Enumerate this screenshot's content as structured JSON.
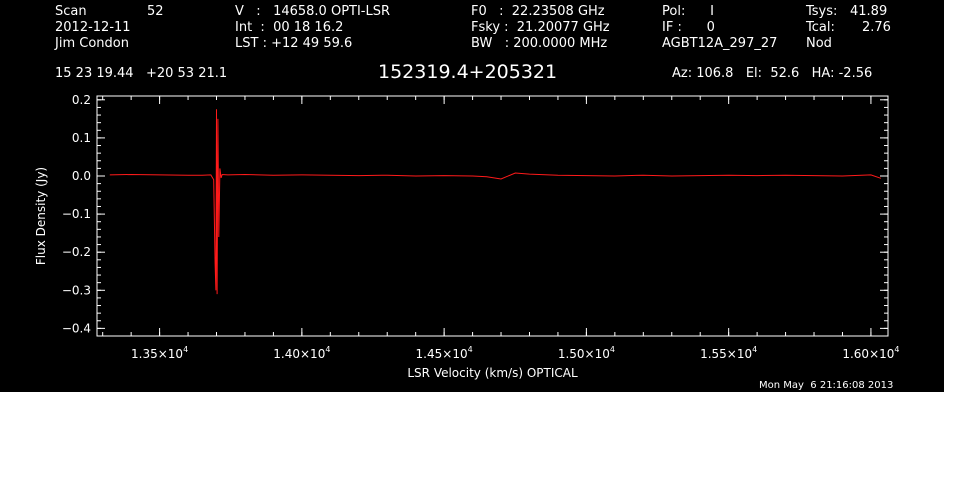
{
  "header": {
    "col1": {
      "scan_label": "Scan",
      "scan_value": "52",
      "date": "2012-12-11",
      "observer": "Jim Condon"
    },
    "col2": {
      "v_line": "V   :   14658.0 OPTI-LSR",
      "int_line": "Int  :  00 18 16.2",
      "lst_line": "LST : +12 49 59.6"
    },
    "col3": {
      "f0_line": "F0   :  22.23508 GHz",
      "fsky_line": "Fsky :  21.20077 GHz",
      "bw_line": "BW   : 200.0000 MHz"
    },
    "col4": {
      "pol_line": "Pol:      I",
      "if_line": "IF :      0",
      "project": "AGBT12A_297_27"
    },
    "col5": {
      "tsys_label": "Tsys:",
      "tsys_value": "41.89",
      "tcal_label": "Tcal:",
      "tcal_value": "2.76",
      "mode": "Nod"
    },
    "coords": "15 23 19.44   +20 53 21.1",
    "source": "152319.4+205321",
    "pointing": "Az: 106.8   El:  52.6   HA: -2.56"
  },
  "footer_timestamp": "Mon May  6 21:16:08 2013",
  "colors": {
    "background": "#000000",
    "trace": "#ff1a1a",
    "axes": "#ffffff"
  },
  "chart_data": {
    "type": "line",
    "title": "152319.4+205321",
    "xlabel": "LSR Velocity (km/s) OPTICAL",
    "ylabel": "Flux Density (Jy)",
    "xlim": [
      13280,
      16060
    ],
    "ylim": [
      -0.42,
      0.21
    ],
    "x_ticks": [
      {
        "value": 13500,
        "mantissa": "1.35",
        "exp": "4"
      },
      {
        "value": 14000,
        "mantissa": "1.40",
        "exp": "4"
      },
      {
        "value": 14500,
        "mantissa": "1.45",
        "exp": "4"
      },
      {
        "value": 15000,
        "mantissa": "1.50",
        "exp": "4"
      },
      {
        "value": 15500,
        "mantissa": "1.55",
        "exp": "4"
      },
      {
        "value": 16000,
        "mantissa": "1.60",
        "exp": "4"
      }
    ],
    "y_ticks": [
      {
        "value": 0.2,
        "label": "0.2"
      },
      {
        "value": 0.1,
        "label": "0.1"
      },
      {
        "value": 0.0,
        "label": "0.0"
      },
      {
        "value": -0.1,
        "label": "−0.1"
      },
      {
        "value": -0.2,
        "label": "−0.2"
      },
      {
        "value": -0.3,
        "label": "−0.3"
      },
      {
        "value": -0.4,
        "label": "−0.4"
      }
    ],
    "series": [
      {
        "x": [
          13325,
          13400,
          13500,
          13600,
          13650,
          13680,
          13690,
          13695,
          13698,
          13700,
          13702,
          13705,
          13708,
          13712,
          13716,
          13720,
          13740,
          13800,
          13900,
          14000,
          14100,
          14200,
          14300,
          14400,
          14500,
          14600,
          14650,
          14700,
          14750,
          14800,
          14900,
          15000,
          15100,
          15200,
          15300,
          15400,
          15500,
          15600,
          15700,
          15800,
          15900,
          16000,
          16035
        ],
        "y": [
          0.003,
          0.004,
          0.003,
          0.002,
          0.002,
          0.003,
          -0.01,
          -0.23,
          -0.3,
          0.175,
          -0.31,
          0.15,
          -0.16,
          0.02,
          -0.005,
          0.004,
          0.003,
          0.004,
          0.002,
          0.003,
          0.002,
          0.001,
          0.002,
          0.0,
          0.001,
          0.0,
          -0.002,
          -0.008,
          0.008,
          0.005,
          0.002,
          0.001,
          0.0,
          0.002,
          0.0,
          0.001,
          0.002,
          0.001,
          0.002,
          0.001,
          0.0,
          0.003,
          -0.006
        ]
      }
    ],
    "grid": false,
    "legend": "none"
  }
}
